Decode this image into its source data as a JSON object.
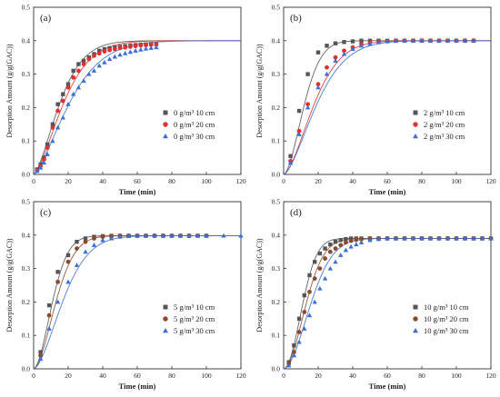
{
  "figure": {
    "panels_count": 4
  },
  "chart_data": [
    {
      "type": "scatter",
      "panel_label": "(a)",
      "xlabel": "Time (min)",
      "ylabel": "Desorption Amount (g/g(GAC))",
      "xlim": [
        0,
        120
      ],
      "ylim": [
        0,
        0.5
      ],
      "xticks": [
        0,
        20,
        40,
        60,
        80,
        100,
        120
      ],
      "yticks": [
        0.0,
        0.1,
        0.2,
        0.3,
        0.4,
        0.5
      ],
      "grid": false,
      "legend_position": "right",
      "series": [
        {
          "name": "0 g/m³ 10 cm",
          "color": "#555555",
          "marker": "square",
          "x": [
            2,
            4,
            6,
            8,
            11,
            14,
            17,
            20,
            23,
            26,
            29,
            32,
            35,
            38,
            41,
            44,
            47,
            50,
            53,
            56,
            59,
            62,
            65,
            68,
            71
          ],
          "y": [
            0.015,
            0.03,
            0.05,
            0.09,
            0.15,
            0.21,
            0.24,
            0.27,
            0.31,
            0.33,
            0.34,
            0.35,
            0.36,
            0.37,
            0.375,
            0.378,
            0.38,
            0.382,
            0.384,
            0.386,
            0.387,
            0.388,
            0.389,
            0.39,
            0.39
          ],
          "fit": {
            "k": 0.055,
            "n": 1.5,
            "qmax": 0.4
          }
        },
        {
          "name": "0 g/m³ 20 cm",
          "color": "#e03030",
          "marker": "circle",
          "x": [
            2,
            4,
            6,
            8,
            11,
            14,
            17,
            20,
            23,
            26,
            29,
            32,
            35,
            38,
            41,
            44,
            47,
            50,
            53,
            56,
            59,
            62,
            65,
            68,
            71
          ],
          "y": [
            0.012,
            0.025,
            0.045,
            0.08,
            0.14,
            0.19,
            0.22,
            0.26,
            0.29,
            0.31,
            0.33,
            0.345,
            0.355,
            0.362,
            0.368,
            0.372,
            0.375,
            0.378,
            0.38,
            0.382,
            0.384,
            0.386,
            0.387,
            0.388,
            0.389
          ],
          "fit": {
            "k": 0.048,
            "n": 1.5,
            "qmax": 0.4
          }
        },
        {
          "name": "0 g/m³ 30 cm",
          "color": "#3b6fd8",
          "marker": "triangle",
          "x": [
            2,
            4,
            6,
            8,
            11,
            14,
            17,
            20,
            23,
            26,
            29,
            32,
            35,
            38,
            41,
            44,
            47,
            50,
            53,
            56,
            59,
            62,
            65,
            68,
            71
          ],
          "y": [
            0.01,
            0.02,
            0.035,
            0.06,
            0.1,
            0.14,
            0.17,
            0.21,
            0.24,
            0.26,
            0.28,
            0.3,
            0.31,
            0.325,
            0.335,
            0.345,
            0.352,
            0.358,
            0.362,
            0.366,
            0.37,
            0.373,
            0.376,
            0.378,
            0.38
          ],
          "fit": {
            "k": 0.04,
            "n": 1.45,
            "qmax": 0.4
          }
        }
      ]
    },
    {
      "type": "scatter",
      "panel_label": "(b)",
      "xlabel": "Time (min)",
      "ylabel": "Desorption Amount (g/g(GAC))",
      "xlim": [
        0,
        120
      ],
      "ylim": [
        0,
        0.5
      ],
      "xticks": [
        0,
        20,
        40,
        60,
        80,
        100,
        120
      ],
      "yticks": [
        0.0,
        0.1,
        0.2,
        0.3,
        0.4,
        0.5
      ],
      "grid": false,
      "legend_position": "right",
      "series": [
        {
          "name": "2 g/m³ 10 cm",
          "color": "#555555",
          "marker": "square",
          "x": [
            4,
            9,
            14,
            20,
            25,
            30,
            35,
            40,
            45,
            50,
            55,
            60,
            65,
            70,
            75,
            80,
            85,
            90,
            95,
            100,
            105,
            110
          ],
          "y": [
            0.055,
            0.19,
            0.3,
            0.365,
            0.385,
            0.392,
            0.396,
            0.398,
            0.4,
            0.4,
            0.4,
            0.4,
            0.4,
            0.4,
            0.4,
            0.4,
            0.4,
            0.4,
            0.4,
            0.4,
            0.4,
            0.4
          ],
          "fit": {
            "k": 0.07,
            "n": 1.75,
            "qmax": 0.4
          }
        },
        {
          "name": "2 g/m³ 20 cm",
          "color": "#e03030",
          "marker": "circle",
          "x": [
            4,
            9,
            14,
            20,
            25,
            30,
            35,
            40,
            45,
            50,
            55,
            60,
            65,
            70,
            75,
            80,
            85,
            90,
            95,
            100,
            105,
            110
          ],
          "y": [
            0.04,
            0.13,
            0.21,
            0.27,
            0.32,
            0.35,
            0.37,
            0.38,
            0.39,
            0.395,
            0.397,
            0.398,
            0.4,
            0.4,
            0.4,
            0.4,
            0.4,
            0.4,
            0.4,
            0.4,
            0.4,
            0.4
          ],
          "fit": {
            "k": 0.047,
            "n": 1.6,
            "qmax": 0.4
          }
        },
        {
          "name": "2 g/m³ 30 cm",
          "color": "#3b6fd8",
          "marker": "triangle",
          "x": [
            4,
            9,
            14,
            20,
            25,
            30,
            35,
            40,
            45,
            50,
            55,
            60,
            65,
            70,
            75,
            80,
            85,
            90,
            95,
            100,
            105,
            110
          ],
          "y": [
            0.035,
            0.12,
            0.2,
            0.26,
            0.3,
            0.34,
            0.36,
            0.375,
            0.385,
            0.39,
            0.395,
            0.398,
            0.4,
            0.4,
            0.4,
            0.4,
            0.4,
            0.4,
            0.4,
            0.4,
            0.4,
            0.4
          ],
          "fit": {
            "k": 0.043,
            "n": 1.55,
            "qmax": 0.4
          }
        }
      ]
    },
    {
      "type": "scatter",
      "panel_label": "(c)",
      "xlabel": "Time (min)",
      "ylabel": "Desorption Amount (g/g(GAC))",
      "xlim": [
        0,
        120
      ],
      "ylim": [
        0,
        0.5
      ],
      "xticks": [
        0,
        20,
        40,
        60,
        80,
        100,
        120
      ],
      "yticks": [
        0.0,
        0.1,
        0.2,
        0.3,
        0.4,
        0.5
      ],
      "grid": false,
      "legend_position": "right",
      "series": [
        {
          "name": "5 g/m³ 10 cm",
          "color": "#555555",
          "marker": "square",
          "x": [
            4,
            9,
            14,
            20,
            25,
            30,
            35,
            40,
            45,
            50,
            55,
            60,
            65,
            70,
            75,
            80,
            85,
            90,
            95,
            100
          ],
          "y": [
            0.05,
            0.19,
            0.29,
            0.34,
            0.38,
            0.39,
            0.395,
            0.397,
            0.398,
            0.398,
            0.398,
            0.398,
            0.398,
            0.398,
            0.398,
            0.398,
            0.398,
            0.398,
            0.398,
            0.398
          ],
          "fit": {
            "k": 0.075,
            "n": 1.8,
            "qmax": 0.398
          }
        },
        {
          "name": "5 g/m³ 20 cm",
          "color": "#8b4a2b",
          "marker": "circle",
          "x": [
            4,
            9,
            14,
            20,
            25,
            30,
            35,
            40,
            45,
            50,
            55,
            60,
            65,
            70,
            75,
            80,
            85,
            90,
            95,
            100
          ],
          "y": [
            0.04,
            0.16,
            0.26,
            0.32,
            0.36,
            0.38,
            0.39,
            0.395,
            0.397,
            0.398,
            0.398,
            0.398,
            0.398,
            0.398,
            0.398,
            0.398,
            0.398,
            0.398,
            0.398,
            0.398
          ],
          "fit": {
            "k": 0.063,
            "n": 1.75,
            "qmax": 0.398
          }
        },
        {
          "name": "5 g/m³ 30 cm",
          "color": "#3b6fd8",
          "marker": "triangle",
          "x": [
            4,
            9,
            14,
            20,
            25,
            30,
            35,
            40,
            45,
            50,
            55,
            60,
            65,
            70,
            75,
            80,
            85,
            90,
            95,
            100,
            110,
            120
          ],
          "y": [
            0.03,
            0.12,
            0.2,
            0.26,
            0.31,
            0.35,
            0.37,
            0.385,
            0.39,
            0.395,
            0.397,
            0.398,
            0.398,
            0.398,
            0.398,
            0.398,
            0.398,
            0.398,
            0.398,
            0.398,
            0.398,
            0.398
          ],
          "fit": {
            "k": 0.048,
            "n": 1.65,
            "qmax": 0.398
          }
        }
      ]
    },
    {
      "type": "scatter",
      "panel_label": "(d)",
      "xlabel": "Time (min)",
      "ylabel": "Desorption Amount (g/g(GAC))",
      "xlim": [
        0,
        120
      ],
      "ylim": [
        0,
        0.5
      ],
      "xticks": [
        0,
        20,
        40,
        60,
        80,
        100,
        120
      ],
      "yticks": [
        0.0,
        0.1,
        0.2,
        0.3,
        0.4,
        0.5
      ],
      "grid": false,
      "legend_position": "right",
      "series": [
        {
          "name": "10 g/m³ 10 cm",
          "color": "#555555",
          "marker": "square",
          "x": [
            3,
            6,
            9,
            12,
            15,
            18,
            21,
            24,
            27,
            30,
            33,
            36,
            39,
            42,
            45,
            50,
            55,
            60,
            65,
            70,
            75,
            80,
            85,
            90,
            95,
            100,
            105,
            110,
            115,
            120
          ],
          "y": [
            0.02,
            0.07,
            0.15,
            0.22,
            0.28,
            0.32,
            0.345,
            0.36,
            0.372,
            0.38,
            0.385,
            0.388,
            0.39,
            0.39,
            0.39,
            0.39,
            0.39,
            0.39,
            0.39,
            0.39,
            0.39,
            0.39,
            0.39,
            0.39,
            0.39,
            0.39,
            0.39,
            0.39,
            0.39,
            0.39
          ],
          "fit": {
            "k": 0.075,
            "n": 2.0,
            "qmax": 0.39
          }
        },
        {
          "name": "10 g/m³ 20 cm",
          "color": "#8b4a2b",
          "marker": "circle",
          "x": [
            3,
            6,
            9,
            12,
            15,
            18,
            21,
            24,
            27,
            30,
            33,
            36,
            39,
            42,
            45,
            50,
            55,
            60,
            65,
            70,
            75,
            80,
            85,
            90,
            95,
            100,
            105,
            110,
            115,
            120
          ],
          "y": [
            0.015,
            0.05,
            0.11,
            0.17,
            0.23,
            0.27,
            0.3,
            0.33,
            0.35,
            0.36,
            0.37,
            0.378,
            0.383,
            0.386,
            0.388,
            0.39,
            0.39,
            0.39,
            0.39,
            0.39,
            0.39,
            0.39,
            0.39,
            0.39,
            0.39,
            0.39,
            0.39,
            0.39,
            0.39,
            0.39
          ],
          "fit": {
            "k": 0.063,
            "n": 1.9,
            "qmax": 0.39
          }
        },
        {
          "name": "10 g/m³ 30 cm",
          "color": "#3b6fd8",
          "marker": "triangle",
          "x": [
            3,
            6,
            9,
            12,
            15,
            18,
            21,
            24,
            27,
            30,
            33,
            36,
            39,
            42,
            45,
            50,
            55,
            60,
            65,
            70,
            75,
            80,
            85,
            90,
            95,
            100,
            105,
            110,
            115,
            120
          ],
          "y": [
            0.01,
            0.04,
            0.08,
            0.12,
            0.16,
            0.2,
            0.24,
            0.27,
            0.3,
            0.32,
            0.34,
            0.355,
            0.365,
            0.372,
            0.378,
            0.385,
            0.388,
            0.39,
            0.39,
            0.39,
            0.39,
            0.39,
            0.39,
            0.39,
            0.39,
            0.39,
            0.39,
            0.39,
            0.39,
            0.39
          ],
          "fit": {
            "k": 0.052,
            "n": 1.85,
            "qmax": 0.39
          }
        }
      ]
    }
  ]
}
